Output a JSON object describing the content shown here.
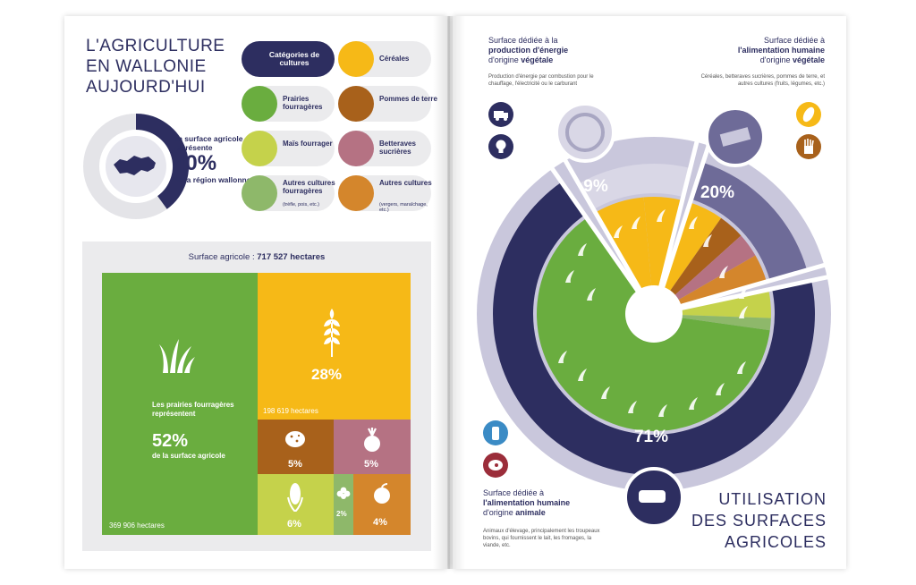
{
  "left": {
    "title_lines": [
      "L'AGRICULTURE",
      "EN WALLONIE",
      "AUJOURD'HUI"
    ],
    "donut": {
      "label_top": "La surface agricole représente",
      "percent": "40%",
      "label_bottom": "de la région wallonne",
      "fraction": 0.4
    },
    "categories": {
      "header": "Catégories de cultures",
      "items": [
        {
          "label": "Céréales",
          "note": "",
          "color": "#f6b917",
          "icon": "wheat-icon"
        },
        {
          "label": "Prairies fourragères",
          "note": "",
          "color": "#6aad3f",
          "icon": "grass-icon"
        },
        {
          "label": "Pommes de terre",
          "note": "",
          "color": "#a8611b",
          "icon": "potato-icon"
        },
        {
          "label": "Maïs fourrager",
          "note": "",
          "color": "#c5d24b",
          "icon": "corn-icon"
        },
        {
          "label": "Betteraves sucrières",
          "note": "",
          "color": "#b57283",
          "icon": "beet-icon"
        },
        {
          "label": "Autres cultures fourragères",
          "note": "(trèfle, pois, etc.)",
          "color": "#8eb86a",
          "icon": "clover-icon"
        },
        {
          "label": "Autres cultures",
          "note": "(vergers, maraîchage, etc.)",
          "color": "#d4862c",
          "icon": "apple-icon"
        }
      ]
    },
    "treemap": {
      "title_prefix": "Surface agricole : ",
      "title_value": "717 527 hectares",
      "prairies": {
        "text1": "Les prairies fourragères représentent",
        "percent": "52%",
        "text2": "de la surface agricole",
        "hectares": "369 906 hectares"
      },
      "cereales": {
        "percent": "28%",
        "hectares": "198 619 hectares"
      },
      "pommes": {
        "percent": "5%"
      },
      "betteraves": {
        "percent": "5%"
      },
      "mais": {
        "percent": "6%"
      },
      "autres_fourrageres": {
        "percent": "2%"
      },
      "autres": {
        "percent": "4%"
      }
    }
  },
  "right": {
    "energy": {
      "line1": "Surface dédiée à la",
      "line2": "production d'énergie",
      "line3_prefix": "d'origine ",
      "line3_bold": "végétale",
      "sub": "Production d'énergie par combustion pour le chauffage, l'électricité ou le carburant"
    },
    "human_veg": {
      "line1": "Surface dédiée à",
      "line2": "l'alimentation humaine",
      "line3_prefix": "d'origine ",
      "line3_bold": "végétale",
      "sub": "Céréales, betteraves sucrières, pommes de terre, et autres cultures (fruits, légumes, etc.)"
    },
    "human_animal": {
      "line1": "Surface dédiée à",
      "line2": "l'alimentation humaine",
      "line3_prefix": "d'origine ",
      "line3_bold": "animale",
      "sub": "Animaux d'élevage, principalement les troupeaux bovins, qui fournissent le lait, les fromages, la viande, etc."
    },
    "percents": {
      "energy": "9%",
      "veg": "20%",
      "animal": "71%"
    },
    "title_lines": [
      "UTILISATION",
      "DES SURFACES",
      "AGRICOLES"
    ],
    "colors": {
      "navy": "#2d2e60",
      "lavender": "#c9c7dc",
      "mid": "#6e6b98",
      "green": "#6aad3f",
      "yellow": "#f6b917"
    }
  }
}
